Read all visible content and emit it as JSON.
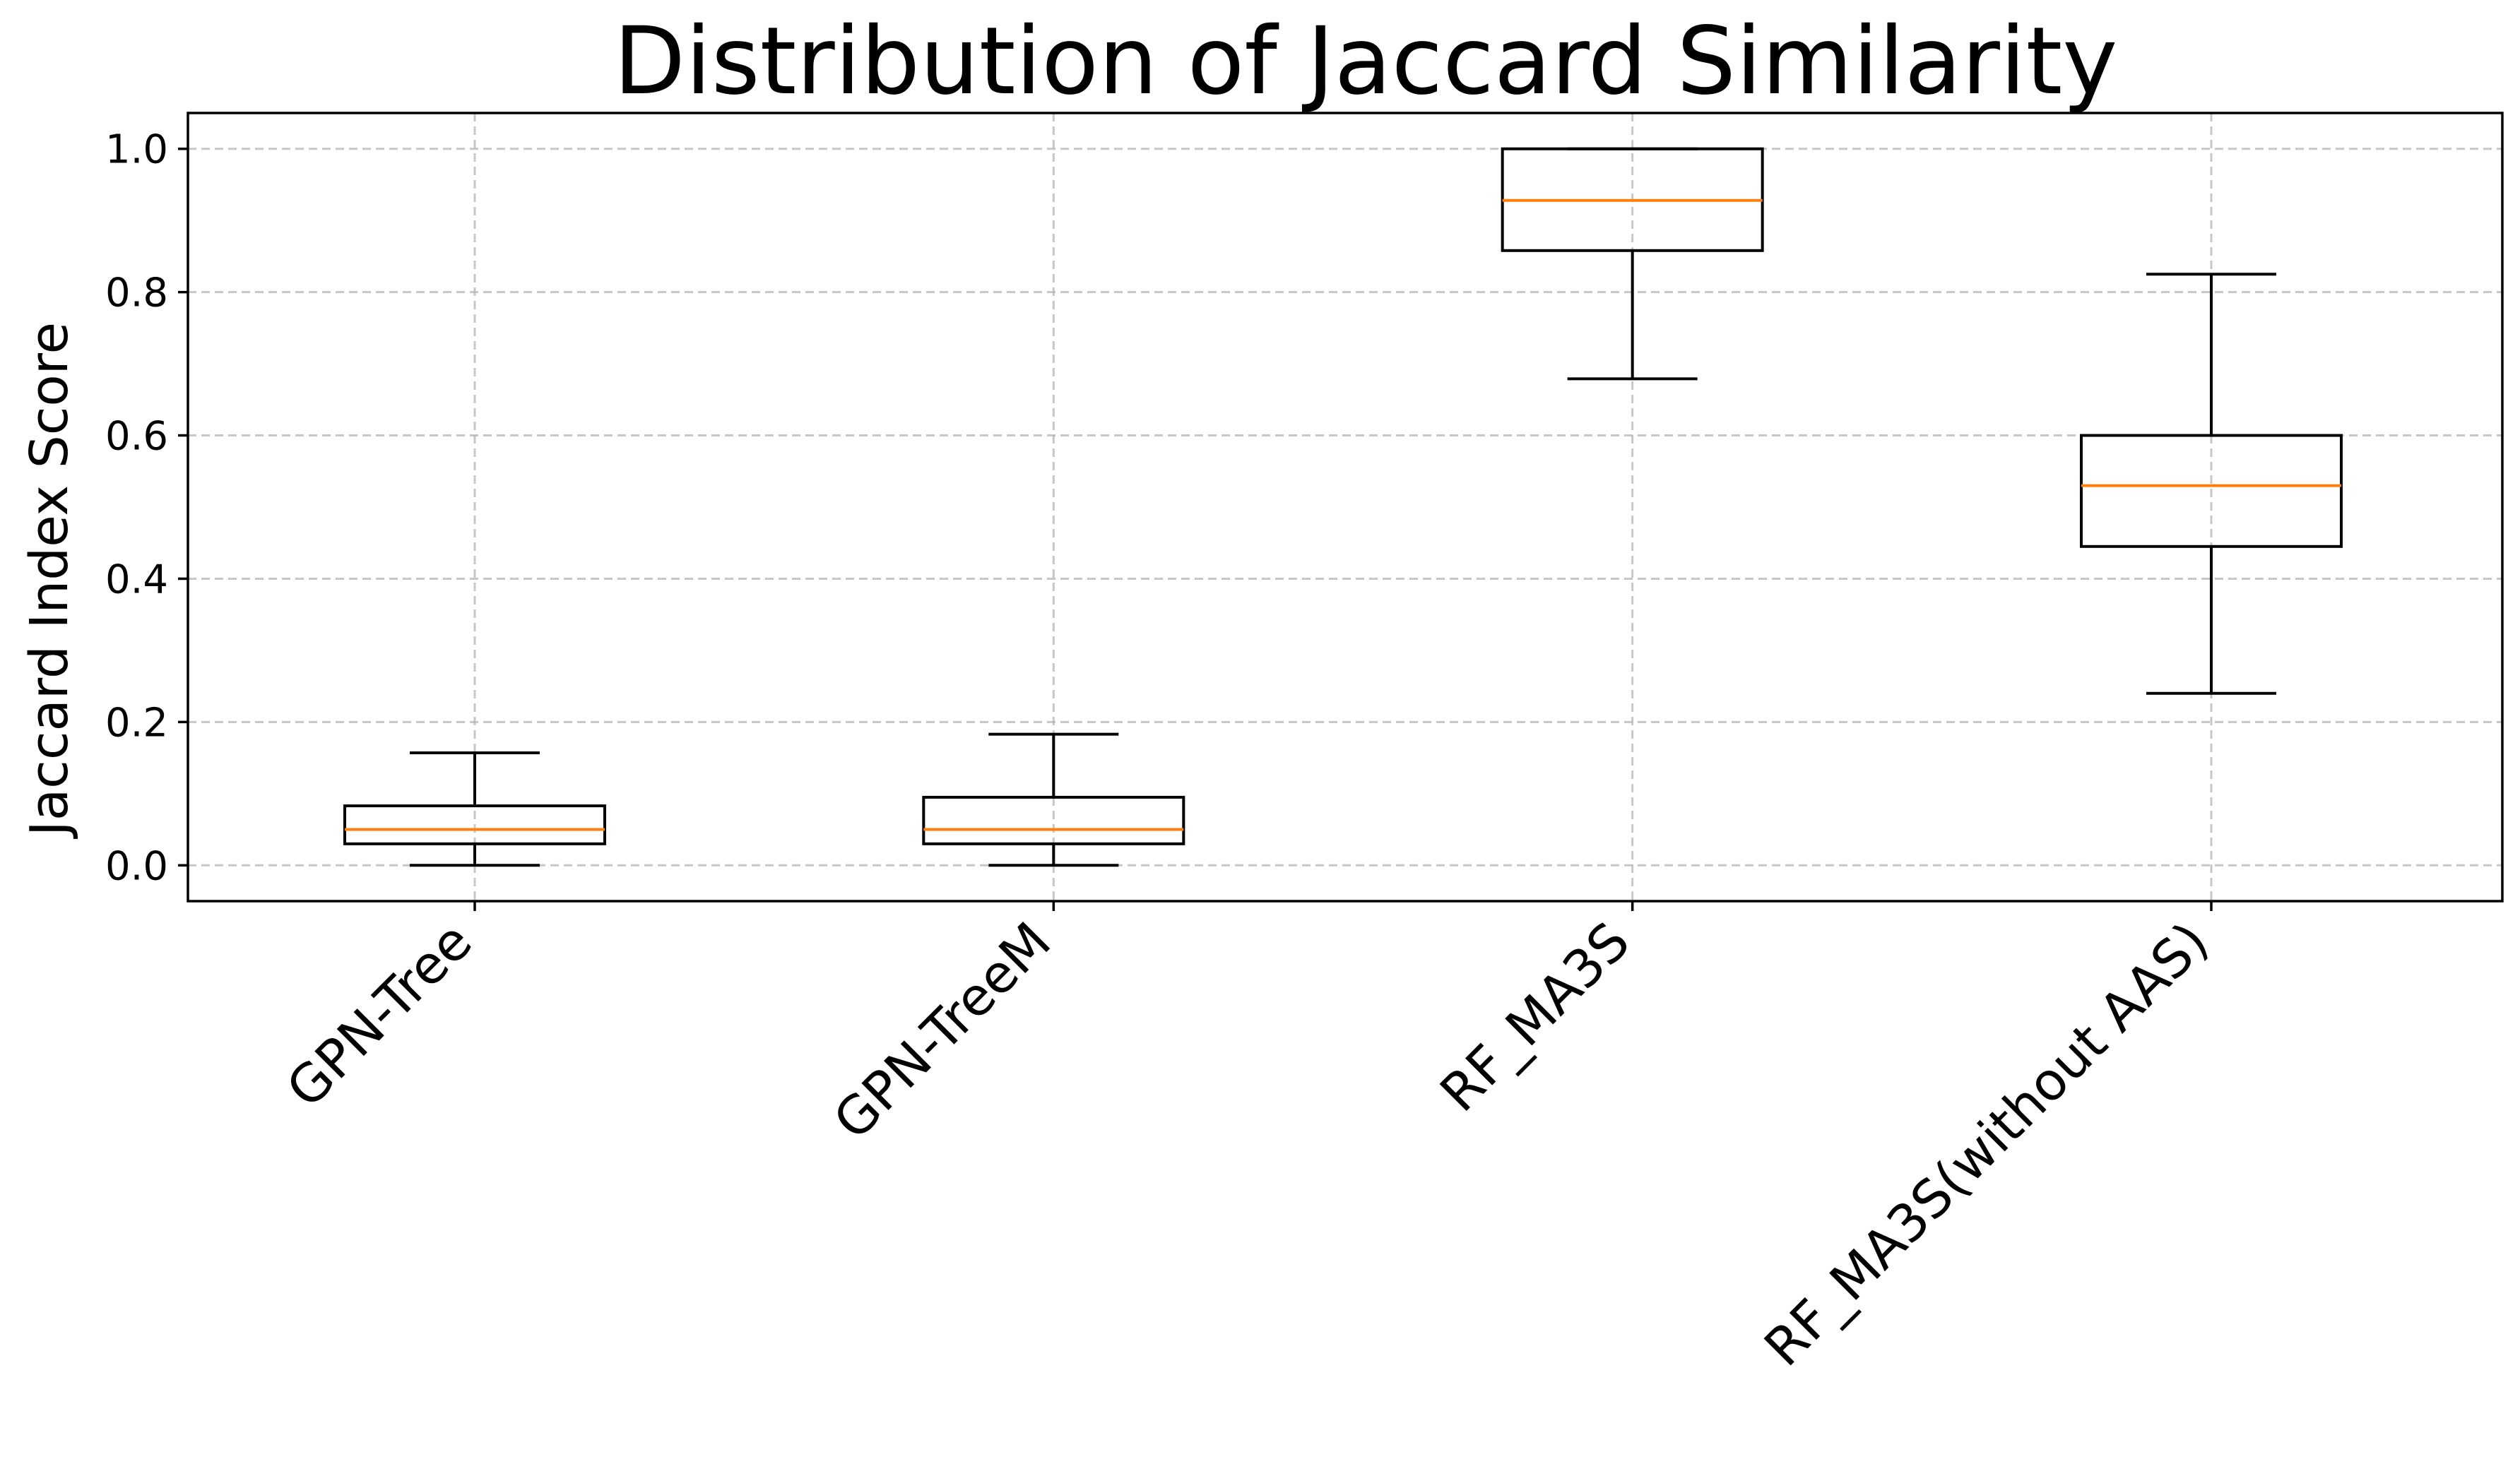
{
  "chart_data": {
    "type": "box",
    "title": "Distribution of Jaccard Similarity",
    "xlabel": "",
    "ylabel": "Jaccard Index Score",
    "ylim": [
      -0.05,
      1.05
    ],
    "yticks": [
      0.0,
      0.2,
      0.4,
      0.6,
      0.8,
      1.0
    ],
    "ytick_labels": [
      "0.0",
      "0.2",
      "0.4",
      "0.6",
      "0.8",
      "1.0"
    ],
    "grid": true,
    "categories": [
      "GPN-Tree",
      "GPN-TreeM",
      "RF_MA3S",
      "RF_MA3S(without AAS)"
    ],
    "boxes": [
      {
        "label": "GPN-Tree",
        "whisker_low": 0.0,
        "q1": 0.03,
        "median": 0.05,
        "q3": 0.083,
        "whisker_high": 0.157
      },
      {
        "label": "GPN-TreeM",
        "whisker_low": 0.0,
        "q1": 0.03,
        "median": 0.05,
        "q3": 0.095,
        "whisker_high": 0.183
      },
      {
        "label": "RF_MA3S",
        "whisker_low": 0.679,
        "q1": 0.858,
        "median": 0.928,
        "q3": 1.0,
        "whisker_high": 1.0
      },
      {
        "label": "RF_MA3S(without AAS)",
        "whisker_low": 0.24,
        "q1": 0.445,
        "median": 0.53,
        "q3": 0.6,
        "whisker_high": 0.825
      }
    ],
    "colors": {
      "box": "#000000",
      "median": "#ff7f0e",
      "grid": "#b0b0b0"
    }
  }
}
